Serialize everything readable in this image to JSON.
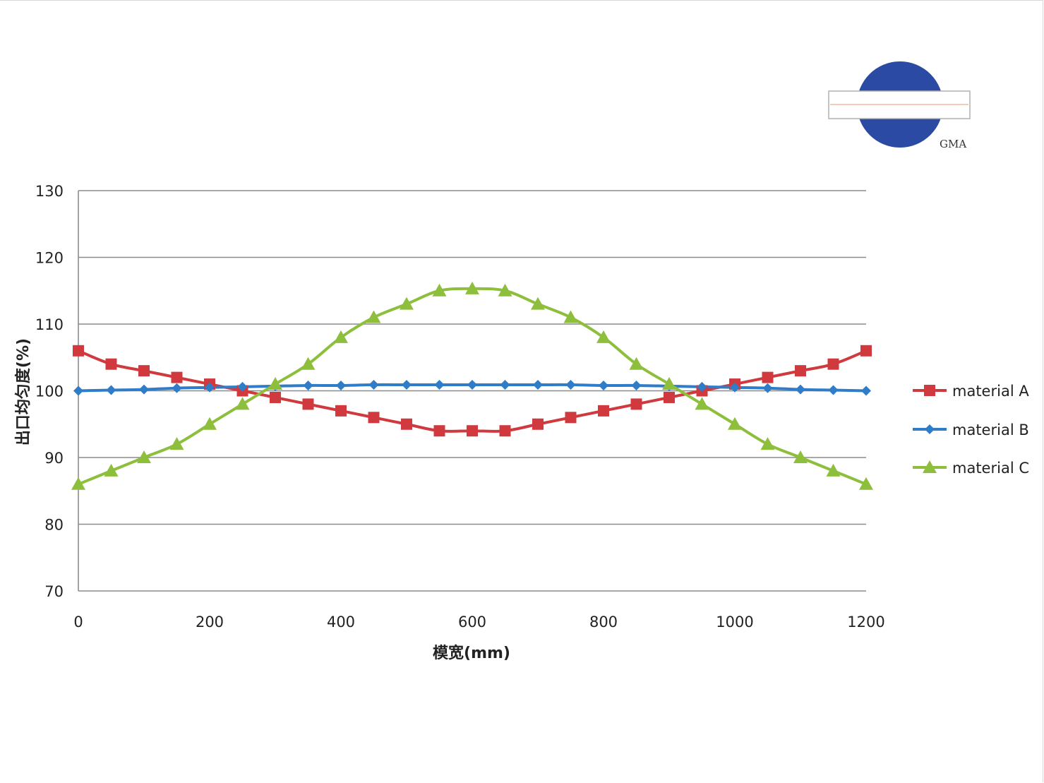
{
  "logo": {
    "text": "GMA",
    "circle_color": "#2a4aa4"
  },
  "chart_data": {
    "type": "line",
    "title": "",
    "xlabel": "模宽(mm)",
    "ylabel": "出口均匀度(%)",
    "xlim": [
      0,
      1200
    ],
    "ylim": [
      70,
      130
    ],
    "x_ticks": [
      0,
      200,
      400,
      600,
      800,
      1000,
      1200
    ],
    "y_ticks": [
      70,
      80,
      90,
      100,
      110,
      120,
      130
    ],
    "grid": "horizontal",
    "legend_position": "right",
    "x": [
      0,
      50,
      100,
      150,
      200,
      250,
      300,
      350,
      400,
      450,
      500,
      550,
      600,
      650,
      700,
      750,
      800,
      850,
      900,
      950,
      1000,
      1050,
      1100,
      1150,
      1200
    ],
    "series": [
      {
        "name": "material A",
        "color": "#d0393e",
        "marker": "square",
        "values": [
          106,
          104,
          103,
          102,
          101,
          100,
          99,
          98,
          97,
          96,
          95,
          94,
          94,
          94,
          95,
          96,
          97,
          98,
          99,
          100,
          101,
          102,
          103,
          104,
          106
        ]
      },
      {
        "name": "material B",
        "color": "#2f7cc8",
        "marker": "diamond",
        "values": [
          100,
          100.1,
          100.2,
          100.4,
          100.5,
          100.6,
          100.7,
          100.8,
          100.8,
          100.9,
          100.9,
          100.9,
          100.9,
          100.9,
          100.9,
          100.9,
          100.8,
          100.8,
          100.7,
          100.6,
          100.5,
          100.4,
          100.2,
          100.1,
          100
        ]
      },
      {
        "name": "material C",
        "color": "#8dbf3c",
        "marker": "triangle",
        "values": [
          86,
          88,
          90,
          92,
          95,
          98,
          101,
          104,
          108,
          111,
          113,
          115,
          115.3,
          115,
          113,
          111,
          108,
          104,
          101,
          98,
          95,
          92,
          90,
          88,
          86
        ]
      }
    ]
  }
}
